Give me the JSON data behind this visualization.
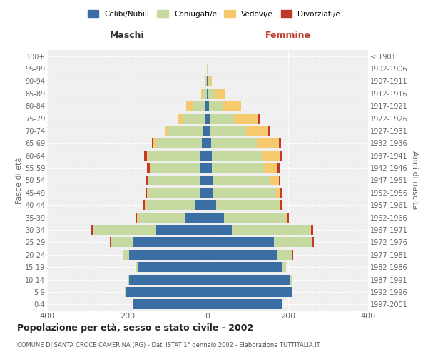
{
  "age_groups": [
    "0-4",
    "5-9",
    "10-14",
    "15-19",
    "20-24",
    "25-29",
    "30-34",
    "35-39",
    "40-44",
    "45-49",
    "50-54",
    "55-59",
    "60-64",
    "65-69",
    "70-74",
    "75-79",
    "80-84",
    "85-89",
    "90-94",
    "95-99",
    "100+"
  ],
  "birth_years": [
    "1997-2001",
    "1992-1996",
    "1987-1991",
    "1982-1986",
    "1977-1981",
    "1972-1976",
    "1967-1971",
    "1962-1966",
    "1957-1961",
    "1952-1956",
    "1947-1951",
    "1942-1946",
    "1937-1941",
    "1932-1936",
    "1927-1931",
    "1922-1926",
    "1917-1921",
    "1912-1916",
    "1907-1911",
    "1902-1906",
    "≤ 1901"
  ],
  "maschi": {
    "celibi": [
      185,
      205,
      195,
      175,
      195,
      185,
      130,
      55,
      30,
      20,
      18,
      17,
      18,
      15,
      12,
      8,
      5,
      2,
      1,
      0,
      0
    ],
    "coniugati": [
      1,
      2,
      4,
      5,
      15,
      55,
      155,
      120,
      125,
      130,
      130,
      125,
      130,
      115,
      85,
      55,
      30,
      8,
      3,
      1,
      0
    ],
    "vedovi": [
      0,
      0,
      0,
      0,
      1,
      1,
      2,
      1,
      1,
      2,
      2,
      2,
      3,
      6,
      8,
      12,
      18,
      6,
      2,
      0,
      0
    ],
    "divorziati": [
      0,
      0,
      0,
      0,
      1,
      2,
      5,
      4,
      6,
      3,
      4,
      8,
      8,
      2,
      0,
      0,
      0,
      0,
      0,
      0,
      0
    ]
  },
  "femmine": {
    "nubili": [
      185,
      210,
      205,
      185,
      175,
      165,
      60,
      40,
      22,
      15,
      12,
      10,
      10,
      8,
      6,
      5,
      3,
      2,
      1,
      0,
      0
    ],
    "coniugate": [
      1,
      2,
      5,
      10,
      35,
      95,
      195,
      155,
      155,
      155,
      145,
      130,
      125,
      115,
      90,
      60,
      35,
      15,
      4,
      1,
      0
    ],
    "vedove": [
      0,
      0,
      0,
      1,
      2,
      2,
      3,
      4,
      5,
      10,
      20,
      35,
      45,
      55,
      55,
      60,
      45,
      25,
      5,
      0,
      0
    ],
    "divorziate": [
      0,
      0,
      0,
      0,
      1,
      3,
      5,
      4,
      5,
      5,
      5,
      4,
      5,
      5,
      5,
      5,
      1,
      1,
      0,
      0,
      0
    ]
  },
  "colors": {
    "celibi_nubili": "#3A6EA5",
    "coniugati": "#C5D9A0",
    "vedovi": "#F5C96E",
    "divorziati": "#C0392B"
  },
  "xlim": 400,
  "title": "Popolazione per età, sesso e stato civile - 2002",
  "subtitle": "COMUNE DI SANTA CROCE CAMERINA (RG) - Dati ISTAT 1° gennaio 2002 - Elaborazione TUTTITALIA.IT",
  "xlabel_left": "Maschi",
  "xlabel_right": "Femmine",
  "ylabel_left": "Fasce di età",
  "ylabel_right": "Anni di nascita",
  "legend_labels": [
    "Celibi/Nubili",
    "Coniugati/e",
    "Vedovi/e",
    "Divorziati/e"
  ],
  "bg_color": "#FFFFFF",
  "plot_bg": "#EFEFEF"
}
